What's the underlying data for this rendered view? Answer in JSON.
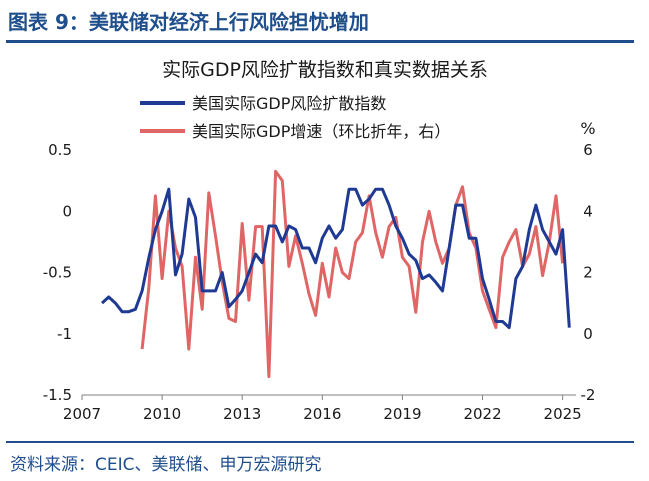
{
  "header": {
    "title": "图表 9：美联储对经济上行风险担忧增加"
  },
  "footer": {
    "source": "资料来源：CEIC、美联储、申万宏源研究"
  },
  "colors": {
    "brand": "#1f4e8c",
    "series_index": "#1f3a93",
    "series_gdp": "#e06666"
  },
  "chart_data": {
    "type": "line",
    "title": "实际GDP风险扩散指数和真实数据关系",
    "right_unit": "%",
    "xlim": [
      2007,
      2025.5
    ],
    "x_ticks": [
      2007,
      2010,
      2013,
      2016,
      2019,
      2022,
      2025
    ],
    "y_left": {
      "lim": [
        -1.5,
        0.5
      ],
      "ticks": [
        0.5,
        0,
        -0.5,
        -1,
        -1.5
      ],
      "tick_labels": [
        "0.5",
        "0",
        "-0.5",
        "-1",
        "-1.5"
      ]
    },
    "y_right": {
      "lim": [
        -2,
        6
      ],
      "ticks": [
        6,
        4,
        2,
        0,
        -2
      ],
      "tick_labels": [
        "6",
        "4",
        "2",
        "0",
        "-2"
      ]
    },
    "series": [
      {
        "name": "美国实际GDP风险扩散指数",
        "axis": "left",
        "color": "#1f3a93",
        "x": [
          2007.75,
          2008.0,
          2008.25,
          2008.5,
          2008.75,
          2009.0,
          2009.25,
          2009.5,
          2009.75,
          2010.0,
          2010.25,
          2010.5,
          2010.75,
          2011.0,
          2011.25,
          2011.5,
          2011.75,
          2012.0,
          2012.25,
          2012.5,
          2012.75,
          2013.0,
          2013.25,
          2013.5,
          2013.75,
          2014.0,
          2014.25,
          2014.5,
          2014.75,
          2015.0,
          2015.25,
          2015.5,
          2015.75,
          2016.0,
          2016.25,
          2016.5,
          2016.75,
          2017.0,
          2017.25,
          2017.5,
          2017.75,
          2018.0,
          2018.25,
          2018.5,
          2018.75,
          2019.0,
          2019.25,
          2019.5,
          2019.75,
          2020.0,
          2020.25,
          2020.5,
          2020.75,
          2021.0,
          2021.25,
          2021.5,
          2021.75,
          2022.0,
          2022.25,
          2022.5,
          2022.75,
          2023.0,
          2023.25,
          2023.5,
          2023.75,
          2024.0,
          2024.25,
          2024.5,
          2024.75,
          2025.0,
          2025.25
        ],
        "values": [
          -0.75,
          -0.7,
          -0.75,
          -0.82,
          -0.82,
          -0.8,
          -0.65,
          -0.38,
          -0.15,
          0.0,
          0.18,
          -0.52,
          -0.35,
          0.1,
          -0.05,
          -0.65,
          -0.65,
          -0.65,
          -0.5,
          -0.78,
          -0.72,
          -0.65,
          -0.5,
          -0.35,
          -0.42,
          -0.12,
          -0.12,
          -0.25,
          -0.12,
          -0.15,
          -0.3,
          -0.3,
          -0.42,
          -0.22,
          -0.12,
          -0.22,
          -0.15,
          0.18,
          0.18,
          0.05,
          0.1,
          0.18,
          0.18,
          0.05,
          -0.12,
          -0.22,
          -0.35,
          -0.4,
          -0.55,
          -0.52,
          -0.58,
          -0.65,
          -0.3,
          0.05,
          0.05,
          -0.22,
          -0.22,
          -0.55,
          -0.72,
          -0.9,
          -0.9,
          -0.95,
          -0.55,
          -0.45,
          -0.15,
          0.05,
          -0.15,
          -0.25,
          -0.35,
          -0.15,
          -0.95
        ]
      },
      {
        "name": "美国实际GDP增速（环比折年，右）",
        "axis": "right",
        "color": "#e06666",
        "x": [
          2009.25,
          2009.5,
          2009.75,
          2010.0,
          2010.25,
          2010.5,
          2010.75,
          2011.0,
          2011.25,
          2011.5,
          2011.75,
          2012.0,
          2012.25,
          2012.5,
          2012.75,
          2013.0,
          2013.25,
          2013.5,
          2013.75,
          2014.0,
          2014.25,
          2014.5,
          2014.75,
          2015.0,
          2015.25,
          2015.5,
          2015.75,
          2016.0,
          2016.25,
          2016.5,
          2016.75,
          2017.0,
          2017.25,
          2017.5,
          2017.75,
          2018.0,
          2018.25,
          2018.5,
          2018.75,
          2019.0,
          2019.25,
          2019.5,
          2019.75,
          2020.0,
          2020.25,
          2020.5,
          2020.75,
          2021.0,
          2021.25,
          2021.5,
          2021.75,
          2022.0,
          2022.25,
          2022.5,
          2022.75,
          2023.0,
          2023.25,
          2023.5,
          2023.75,
          2024.0,
          2024.25,
          2024.5,
          2024.75,
          2025.0
        ],
        "values": [
          -0.5,
          1.5,
          4.5,
          1.8,
          4.0,
          2.8,
          2.2,
          -0.5,
          2.5,
          0.8,
          4.6,
          3.2,
          1.7,
          0.5,
          0.4,
          3.6,
          1.1,
          3.5,
          3.5,
          -1.4,
          5.3,
          5.0,
          2.2,
          3.2,
          2.3,
          1.3,
          0.6,
          2.3,
          1.2,
          2.8,
          2.0,
          1.8,
          3.0,
          3.3,
          4.5,
          3.3,
          2.5,
          3.5,
          3.8,
          2.5,
          2.2,
          0.7,
          3.0,
          4.0,
          3.0,
          2.3,
          2.8,
          4.2,
          4.8,
          3.3,
          2.8,
          1.4,
          0.8,
          0.2,
          2.5,
          3.0,
          3.4,
          2.2,
          2.6,
          3.5,
          1.9,
          3.0,
          4.5,
          2.3
        ]
      }
    ]
  }
}
